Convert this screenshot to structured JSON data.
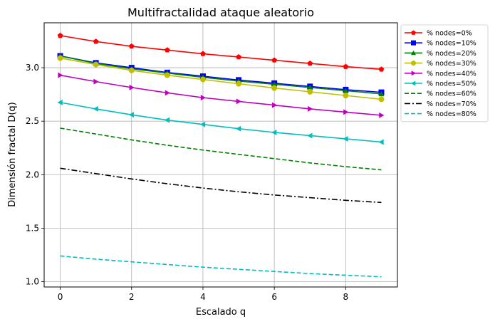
{
  "chart_data": {
    "type": "line",
    "title": "Multifractalidad ataque aleatorio",
    "xlabel": "Escalado q",
    "ylabel": "Dimensión fractal D(q)",
    "xlim": [
      -0.45,
      9.45
    ],
    "ylim": [
      0.95,
      3.42
    ],
    "xticks": [
      0,
      2,
      4,
      6,
      8
    ],
    "yticks": [
      1.0,
      1.5,
      2.0,
      2.5,
      3.0
    ],
    "xtick_labels": [
      "0",
      "2",
      "4",
      "6",
      "8"
    ],
    "ytick_labels": [
      "1.0",
      "1.5",
      "2.0",
      "2.5",
      "3.0"
    ],
    "grid": true,
    "legend_position": "outside-right-top",
    "x": [
      0,
      1,
      2,
      3,
      4,
      5,
      6,
      7,
      8,
      9
    ],
    "series": [
      {
        "name": "% nodes=0%",
        "color": "#ff0000",
        "marker": "pentagon",
        "dash": "solid",
        "values": [
          3.3,
          3.245,
          3.2,
          3.165,
          3.13,
          3.1,
          3.07,
          3.04,
          3.01,
          2.985
        ]
      },
      {
        "name": "% nodes=10%",
        "color": "#0000ff",
        "marker": "square",
        "dash": "solid",
        "values": [
          3.11,
          3.045,
          3.0,
          2.955,
          2.92,
          2.885,
          2.855,
          2.825,
          2.795,
          2.77
        ]
      },
      {
        "name": "% nodes=20%",
        "color": "#008000",
        "marker": "triangle-up",
        "dash": "solid",
        "values": [
          3.11,
          3.04,
          2.99,
          2.95,
          2.91,
          2.875,
          2.845,
          2.815,
          2.785,
          2.755
        ]
      },
      {
        "name": "% nodes=30%",
        "color": "#bfbf00",
        "marker": "circle",
        "dash": "solid",
        "values": [
          3.09,
          3.03,
          2.975,
          2.93,
          2.89,
          2.85,
          2.81,
          2.775,
          2.74,
          2.705
        ]
      },
      {
        "name": "% nodes=40%",
        "color": "#bf00bf",
        "marker": "triangle-right",
        "dash": "solid",
        "values": [
          2.93,
          2.87,
          2.815,
          2.765,
          2.72,
          2.685,
          2.65,
          2.615,
          2.585,
          2.555
        ]
      },
      {
        "name": "% nodes=50%",
        "color": "#00bfbf",
        "marker": "triangle-left",
        "dash": "solid",
        "values": [
          2.675,
          2.615,
          2.56,
          2.51,
          2.47,
          2.43,
          2.395,
          2.365,
          2.335,
          2.305
        ]
      },
      {
        "name": "% nodes=60%",
        "color": "#008000",
        "marker": "none",
        "dash": "dashed",
        "values": [
          2.435,
          2.38,
          2.325,
          2.275,
          2.23,
          2.19,
          2.15,
          2.11,
          2.075,
          2.045
        ]
      },
      {
        "name": "% nodes=70%",
        "color": "#000000",
        "marker": "none",
        "dash": "dashdot",
        "values": [
          2.06,
          2.01,
          1.96,
          1.915,
          1.875,
          1.84,
          1.81,
          1.785,
          1.76,
          1.74
        ]
      },
      {
        "name": "% nodes=80%",
        "color": "#00bfbf",
        "marker": "none",
        "dash": "dashed",
        "values": [
          1.24,
          1.21,
          1.185,
          1.16,
          1.135,
          1.115,
          1.095,
          1.075,
          1.06,
          1.045
        ]
      }
    ]
  }
}
